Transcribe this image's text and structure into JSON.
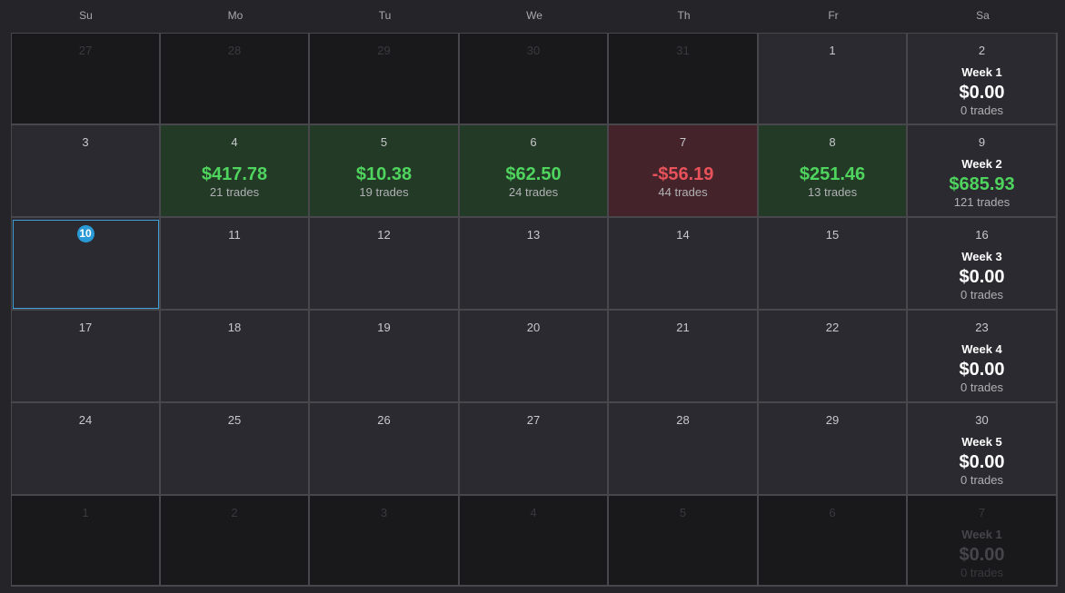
{
  "weekdays": [
    "Su",
    "Mo",
    "Tu",
    "We",
    "Th",
    "Fr",
    "Sa"
  ],
  "weeks": [
    {
      "days": [
        {
          "day": "27",
          "outside": true
        },
        {
          "day": "28",
          "outside": true
        },
        {
          "day": "29",
          "outside": true
        },
        {
          "day": "30",
          "outside": true
        },
        {
          "day": "31",
          "outside": true
        },
        {
          "day": "1"
        },
        {
          "day": "2"
        }
      ],
      "summary": {
        "label": "Week 1",
        "total": "$0.00",
        "trades": "0 trades"
      }
    },
    {
      "days": [
        {
          "day": "3"
        },
        {
          "day": "4",
          "pnl": "$417.78",
          "trades": "21 trades",
          "status": "pos"
        },
        {
          "day": "5",
          "pnl": "$10.38",
          "trades": "19 trades",
          "status": "pos"
        },
        {
          "day": "6",
          "pnl": "$62.50",
          "trades": "24 trades",
          "status": "pos"
        },
        {
          "day": "7",
          "pnl": "-$56.19",
          "trades": "44 trades",
          "status": "neg"
        },
        {
          "day": "8",
          "pnl": "$251.46",
          "trades": "13 trades",
          "status": "pos"
        },
        {
          "day": "9"
        }
      ],
      "summary": {
        "label": "Week 2",
        "total": "$685.93",
        "trades": "121 trades",
        "positive": true
      }
    },
    {
      "days": [
        {
          "day": "10",
          "today": true
        },
        {
          "day": "11"
        },
        {
          "day": "12"
        },
        {
          "day": "13"
        },
        {
          "day": "14"
        },
        {
          "day": "15"
        },
        {
          "day": "16"
        }
      ],
      "summary": {
        "label": "Week 3",
        "total": "$0.00",
        "trades": "0 trades"
      }
    },
    {
      "days": [
        {
          "day": "17"
        },
        {
          "day": "18"
        },
        {
          "day": "19"
        },
        {
          "day": "20"
        },
        {
          "day": "21"
        },
        {
          "day": "22"
        },
        {
          "day": "23"
        }
      ],
      "summary": {
        "label": "Week 4",
        "total": "$0.00",
        "trades": "0 trades"
      }
    },
    {
      "days": [
        {
          "day": "24"
        },
        {
          "day": "25"
        },
        {
          "day": "26"
        },
        {
          "day": "27"
        },
        {
          "day": "28"
        },
        {
          "day": "29"
        },
        {
          "day": "30"
        }
      ],
      "summary": {
        "label": "Week 5",
        "total": "$0.00",
        "trades": "0 trades"
      }
    },
    {
      "days": [
        {
          "day": "1",
          "outside": true
        },
        {
          "day": "2",
          "outside": true
        },
        {
          "day": "3",
          "outside": true
        },
        {
          "day": "4",
          "outside": true
        },
        {
          "day": "5",
          "outside": true
        },
        {
          "day": "6",
          "outside": true
        },
        {
          "day": "7",
          "outside": true
        }
      ],
      "summary": {
        "label": "Week 1",
        "total": "$0.00",
        "trades": "0 trades"
      }
    }
  ],
  "colors": {
    "positive": "#4fd45e",
    "negative": "#e8525a",
    "positive_bg": "#233a27",
    "negative_bg": "#44242a",
    "today_accent": "#2a9ad6"
  }
}
